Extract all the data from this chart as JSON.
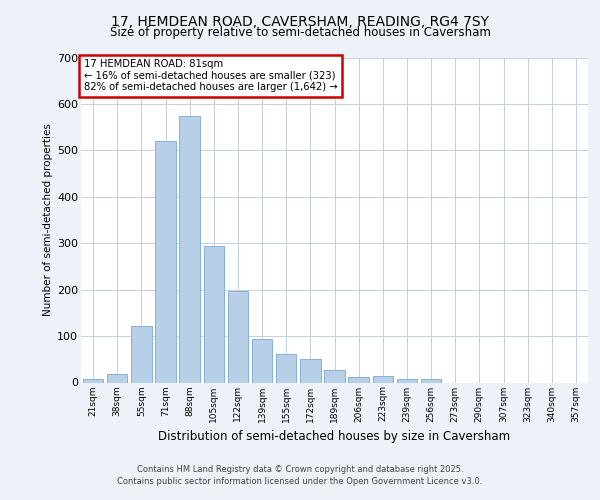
{
  "title1": "17, HEMDEAN ROAD, CAVERSHAM, READING, RG4 7SY",
  "title2": "Size of property relative to semi-detached houses in Caversham",
  "xlabel": "Distribution of semi-detached houses by size in Caversham",
  "ylabel": "Number of semi-detached properties",
  "categories": [
    "21sqm",
    "38sqm",
    "55sqm",
    "71sqm",
    "88sqm",
    "105sqm",
    "122sqm",
    "139sqm",
    "155sqm",
    "172sqm",
    "189sqm",
    "206sqm",
    "223sqm",
    "239sqm",
    "256sqm",
    "273sqm",
    "290sqm",
    "307sqm",
    "323sqm",
    "340sqm",
    "357sqm"
  ],
  "values": [
    7,
    18,
    122,
    520,
    575,
    295,
    198,
    93,
    62,
    50,
    28,
    11,
    13,
    8,
    7,
    0,
    0,
    0,
    0,
    0,
    0
  ],
  "bar_color": "#b8cfe8",
  "bar_edge_color": "#7aa8d2",
  "annotation_title": "17 HEMDEAN ROAD: 81sqm",
  "annotation_line2": "← 16% of semi-detached houses are smaller (323)",
  "annotation_line3": "82% of semi-detached houses are larger (1,642) →",
  "annotation_box_edge": "#cc0000",
  "ylim_max": 700,
  "yticks": [
    0,
    100,
    200,
    300,
    400,
    500,
    600,
    700
  ],
  "footer1": "Contains HM Land Registry data © Crown copyright and database right 2025.",
  "footer2": "Contains public sector information licensed under the Open Government Licence v3.0.",
  "bg_color": "#edf2f9",
  "plot_bg_color": "#ffffff",
  "grid_color": "#c5d0e0"
}
